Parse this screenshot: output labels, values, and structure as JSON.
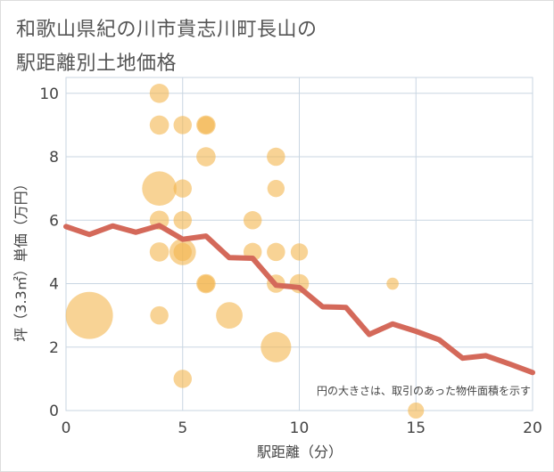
{
  "title_line1": "和歌山県紀の川市貴志川町長山の",
  "title_line2": "駅距離別土地価格",
  "colors": {
    "bubble": "#f4b64f",
    "line": "#d4695a",
    "grid": "#c9d6e2",
    "border": "#dddddd"
  },
  "chart_data": {
    "type": "scatter",
    "xlabel": "駅距離（分）",
    "ylabel": "坪（3.3㎡）単価（万円）",
    "xlim": [
      0,
      20
    ],
    "ylim": [
      0,
      10.5
    ],
    "xticks": [
      0,
      5,
      10,
      15,
      20
    ],
    "yticks": [
      0,
      2,
      4,
      6,
      8,
      10
    ],
    "grid": true,
    "note": "円の大きさは、取引のあった物件面積を示す",
    "series": [
      {
        "kind": "bubble",
        "points": [
          {
            "x": 1,
            "y": 3.0,
            "size": 6.0
          },
          {
            "x": 4,
            "y": 10.0,
            "size": 1.0
          },
          {
            "x": 4,
            "y": 9.0,
            "size": 1.0
          },
          {
            "x": 4,
            "y": 7.0,
            "size": 3.2
          },
          {
            "x": 4,
            "y": 6.0,
            "size": 1.0
          },
          {
            "x": 4,
            "y": 5.0,
            "size": 1.0
          },
          {
            "x": 4,
            "y": 3.0,
            "size": 0.9
          },
          {
            "x": 5,
            "y": 9.0,
            "size": 0.9
          },
          {
            "x": 5,
            "y": 7.0,
            "size": 0.9
          },
          {
            "x": 5,
            "y": 6.0,
            "size": 0.9
          },
          {
            "x": 5,
            "y": 5.0,
            "size": 1.9
          },
          {
            "x": 5,
            "y": 5.0,
            "size": 0.9
          },
          {
            "x": 5,
            "y": 1.0,
            "size": 0.9
          },
          {
            "x": 6,
            "y": 9.0,
            "size": 1.0
          },
          {
            "x": 6,
            "y": 9.0,
            "size": 0.8
          },
          {
            "x": 6,
            "y": 8.0,
            "size": 1.0
          },
          {
            "x": 6,
            "y": 4.0,
            "size": 1.0
          },
          {
            "x": 6,
            "y": 4.0,
            "size": 0.8
          },
          {
            "x": 7,
            "y": 3.0,
            "size": 1.9
          },
          {
            "x": 8,
            "y": 6.0,
            "size": 0.9
          },
          {
            "x": 8,
            "y": 5.0,
            "size": 0.9
          },
          {
            "x": 9,
            "y": 8.0,
            "size": 0.9
          },
          {
            "x": 9,
            "y": 7.0,
            "size": 0.8
          },
          {
            "x": 9,
            "y": 5.0,
            "size": 0.9
          },
          {
            "x": 9,
            "y": 4.0,
            "size": 0.9
          },
          {
            "x": 9,
            "y": 2.0,
            "size": 2.5
          },
          {
            "x": 10,
            "y": 5.0,
            "size": 0.8
          },
          {
            "x": 10,
            "y": 4.0,
            "size": 1.0
          },
          {
            "x": 14,
            "y": 4.0,
            "size": 0.4
          },
          {
            "x": 15,
            "y": 0.0,
            "size": 0.7
          }
        ]
      },
      {
        "kind": "line",
        "x": [
          0,
          1,
          2,
          3,
          4,
          5,
          6,
          7,
          8,
          9,
          10,
          11,
          12,
          13,
          14,
          15,
          16,
          17,
          18,
          19,
          20
        ],
        "y": [
          5.8,
          5.55,
          5.82,
          5.62,
          5.83,
          5.4,
          5.5,
          4.82,
          4.8,
          3.95,
          3.88,
          3.27,
          3.25,
          2.4,
          2.73,
          2.5,
          2.23,
          1.65,
          1.73,
          1.47,
          1.2
        ]
      }
    ]
  }
}
